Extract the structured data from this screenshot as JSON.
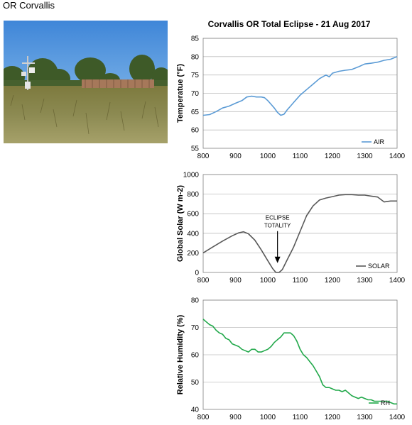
{
  "page": {
    "caption": "OR Corvallis"
  },
  "photo": {
    "subject": "weather-station-field-photo"
  },
  "colors": {
    "air": "#5b9bd5",
    "solar": "#595959",
    "rh": "#21a84a",
    "grid": "#bfbfbf",
    "axis": "#808080"
  },
  "chart_data": [
    {
      "type": "line",
      "title": "Corvallis OR Total Eclipse - 21 Aug 2017",
      "xlabel": "",
      "ylabel": "Temperatue (°F)",
      "xlim": [
        800,
        1400
      ],
      "ylim": [
        55,
        85
      ],
      "xticks": [
        800,
        900,
        1000,
        1100,
        1200,
        1300,
        1400
      ],
      "yticks": [
        55,
        60,
        65,
        70,
        75,
        80,
        85
      ],
      "grid": true,
      "legend_placement": "bottom-right",
      "series": [
        {
          "name": "AIR",
          "color": "#5b9bd5",
          "x": [
            800,
            820,
            840,
            860,
            880,
            900,
            920,
            935,
            950,
            965,
            980,
            990,
            1000,
            1010,
            1020,
            1030,
            1040,
            1050,
            1060,
            1070,
            1080,
            1090,
            1100,
            1120,
            1140,
            1160,
            1180,
            1190,
            1200,
            1220,
            1240,
            1260,
            1280,
            1300,
            1320,
            1340,
            1360,
            1380,
            1400
          ],
          "y": [
            64,
            64.2,
            65,
            66,
            66.5,
            67.3,
            68,
            69,
            69.2,
            69,
            69,
            68.8,
            68,
            67,
            66,
            64.8,
            64,
            64.3,
            65.5,
            66.5,
            67.5,
            68.5,
            69.5,
            71,
            72.5,
            74,
            75,
            74.5,
            75.5,
            76,
            76.3,
            76.5,
            77.2,
            78,
            78.2,
            78.5,
            79,
            79.3,
            80
          ]
        }
      ]
    },
    {
      "type": "line",
      "title": "",
      "xlabel": "",
      "ylabel": "Global Solar (W m-2)",
      "xlim": [
        800,
        1400
      ],
      "ylim": [
        0,
        1000
      ],
      "xticks": [
        800,
        900,
        1000,
        1100,
        1200,
        1300,
        1400
      ],
      "yticks": [
        0,
        200,
        400,
        600,
        800,
        1000
      ],
      "grid": true,
      "legend_placement": "bottom-right",
      "annotation": {
        "line1": "ECLIPSE",
        "line2": "TOTALITY",
        "x": 1030,
        "y": 60
      },
      "series": [
        {
          "name": "SOLAR",
          "color": "#595959",
          "x": [
            800,
            830,
            860,
            890,
            910,
            925,
            940,
            960,
            980,
            1000,
            1015,
            1025,
            1035,
            1045,
            1060,
            1080,
            1100,
            1120,
            1140,
            1160,
            1180,
            1200,
            1220,
            1240,
            1260,
            1280,
            1300,
            1320,
            1340,
            1360,
            1380,
            1400
          ],
          "y": [
            200,
            260,
            320,
            375,
            405,
            415,
            395,
            330,
            230,
            120,
            40,
            0,
            0,
            30,
            130,
            260,
            420,
            580,
            680,
            740,
            760,
            775,
            790,
            795,
            795,
            790,
            790,
            780,
            770,
            720,
            730,
            730
          ]
        }
      ]
    },
    {
      "type": "line",
      "title": "",
      "xlabel": "",
      "ylabel": "Relative Humidity (%)",
      "xlim": [
        800,
        1400
      ],
      "ylim": [
        40,
        80
      ],
      "xticks": [
        800,
        900,
        1000,
        1100,
        1200,
        1300,
        1400
      ],
      "yticks": [
        40,
        50,
        60,
        70,
        80
      ],
      "grid": true,
      "legend_placement": "bottom-right",
      "series": [
        {
          "name": "RH",
          "color": "#21a84a",
          "x": [
            800,
            810,
            820,
            830,
            840,
            850,
            860,
            870,
            880,
            890,
            900,
            910,
            920,
            930,
            940,
            950,
            960,
            970,
            980,
            990,
            1000,
            1010,
            1020,
            1030,
            1040,
            1050,
            1060,
            1070,
            1080,
            1090,
            1100,
            1110,
            1120,
            1130,
            1140,
            1150,
            1160,
            1170,
            1180,
            1190,
            1200,
            1210,
            1220,
            1230,
            1240,
            1250,
            1260,
            1270,
            1280,
            1290,
            1300,
            1310,
            1320,
            1330,
            1340,
            1350,
            1360,
            1370,
            1380,
            1390,
            1400
          ],
          "y": [
            73,
            72,
            71,
            70.5,
            69,
            68,
            67.5,
            66,
            65.5,
            64,
            63.5,
            63,
            62,
            61.5,
            61,
            62,
            62,
            61,
            61,
            61.5,
            62,
            63,
            64.5,
            65.5,
            66.5,
            68,
            68,
            68,
            67,
            65,
            62,
            60,
            59,
            57.5,
            56,
            54,
            52,
            49,
            48,
            48,
            47.5,
            47,
            47,
            46.5,
            47,
            46,
            45,
            44.5,
            44,
            44.5,
            44,
            43.5,
            43.5,
            43,
            43,
            43,
            43,
            43,
            42.5,
            42,
            42
          ]
        }
      ]
    }
  ]
}
